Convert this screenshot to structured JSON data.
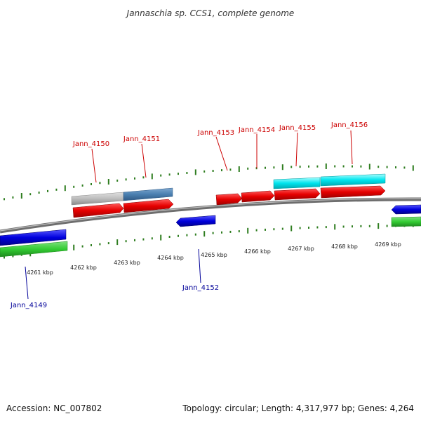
{
  "title": "Jannaschia sp. CCS1, complete genome",
  "footer": {
    "accession": "Accession: NC_007802",
    "topology": "Topology: circular; Length: 4,317,977 bp; Genes: 4,264"
  },
  "colors": {
    "forward_cds": "#e60000",
    "reverse_cds": "#0000dd",
    "rna": "#33cc33",
    "cyan_feature": "#00e5ee",
    "steelblue_feature": "#4a7fb0",
    "gray_feature": "#bdbdbd",
    "tick": "#2e7d1f",
    "backbone": "#777777"
  },
  "scale": {
    "unit": "kbp",
    "labels": [
      "4261 kbp",
      "4262 kbp",
      "4263 kbp",
      "4264 kbp",
      "4265 kbp",
      "4266 kbp",
      "4267 kbp",
      "4268 kbp",
      "4269 kbp"
    ]
  },
  "genes": {
    "forward": [
      "Jann_4150",
      "Jann_4151",
      "Jann_4153",
      "Jann_4154",
      "Jann_4155",
      "Jann_4156"
    ],
    "reverse": [
      "Jann_4149",
      "Jann_4152"
    ]
  }
}
